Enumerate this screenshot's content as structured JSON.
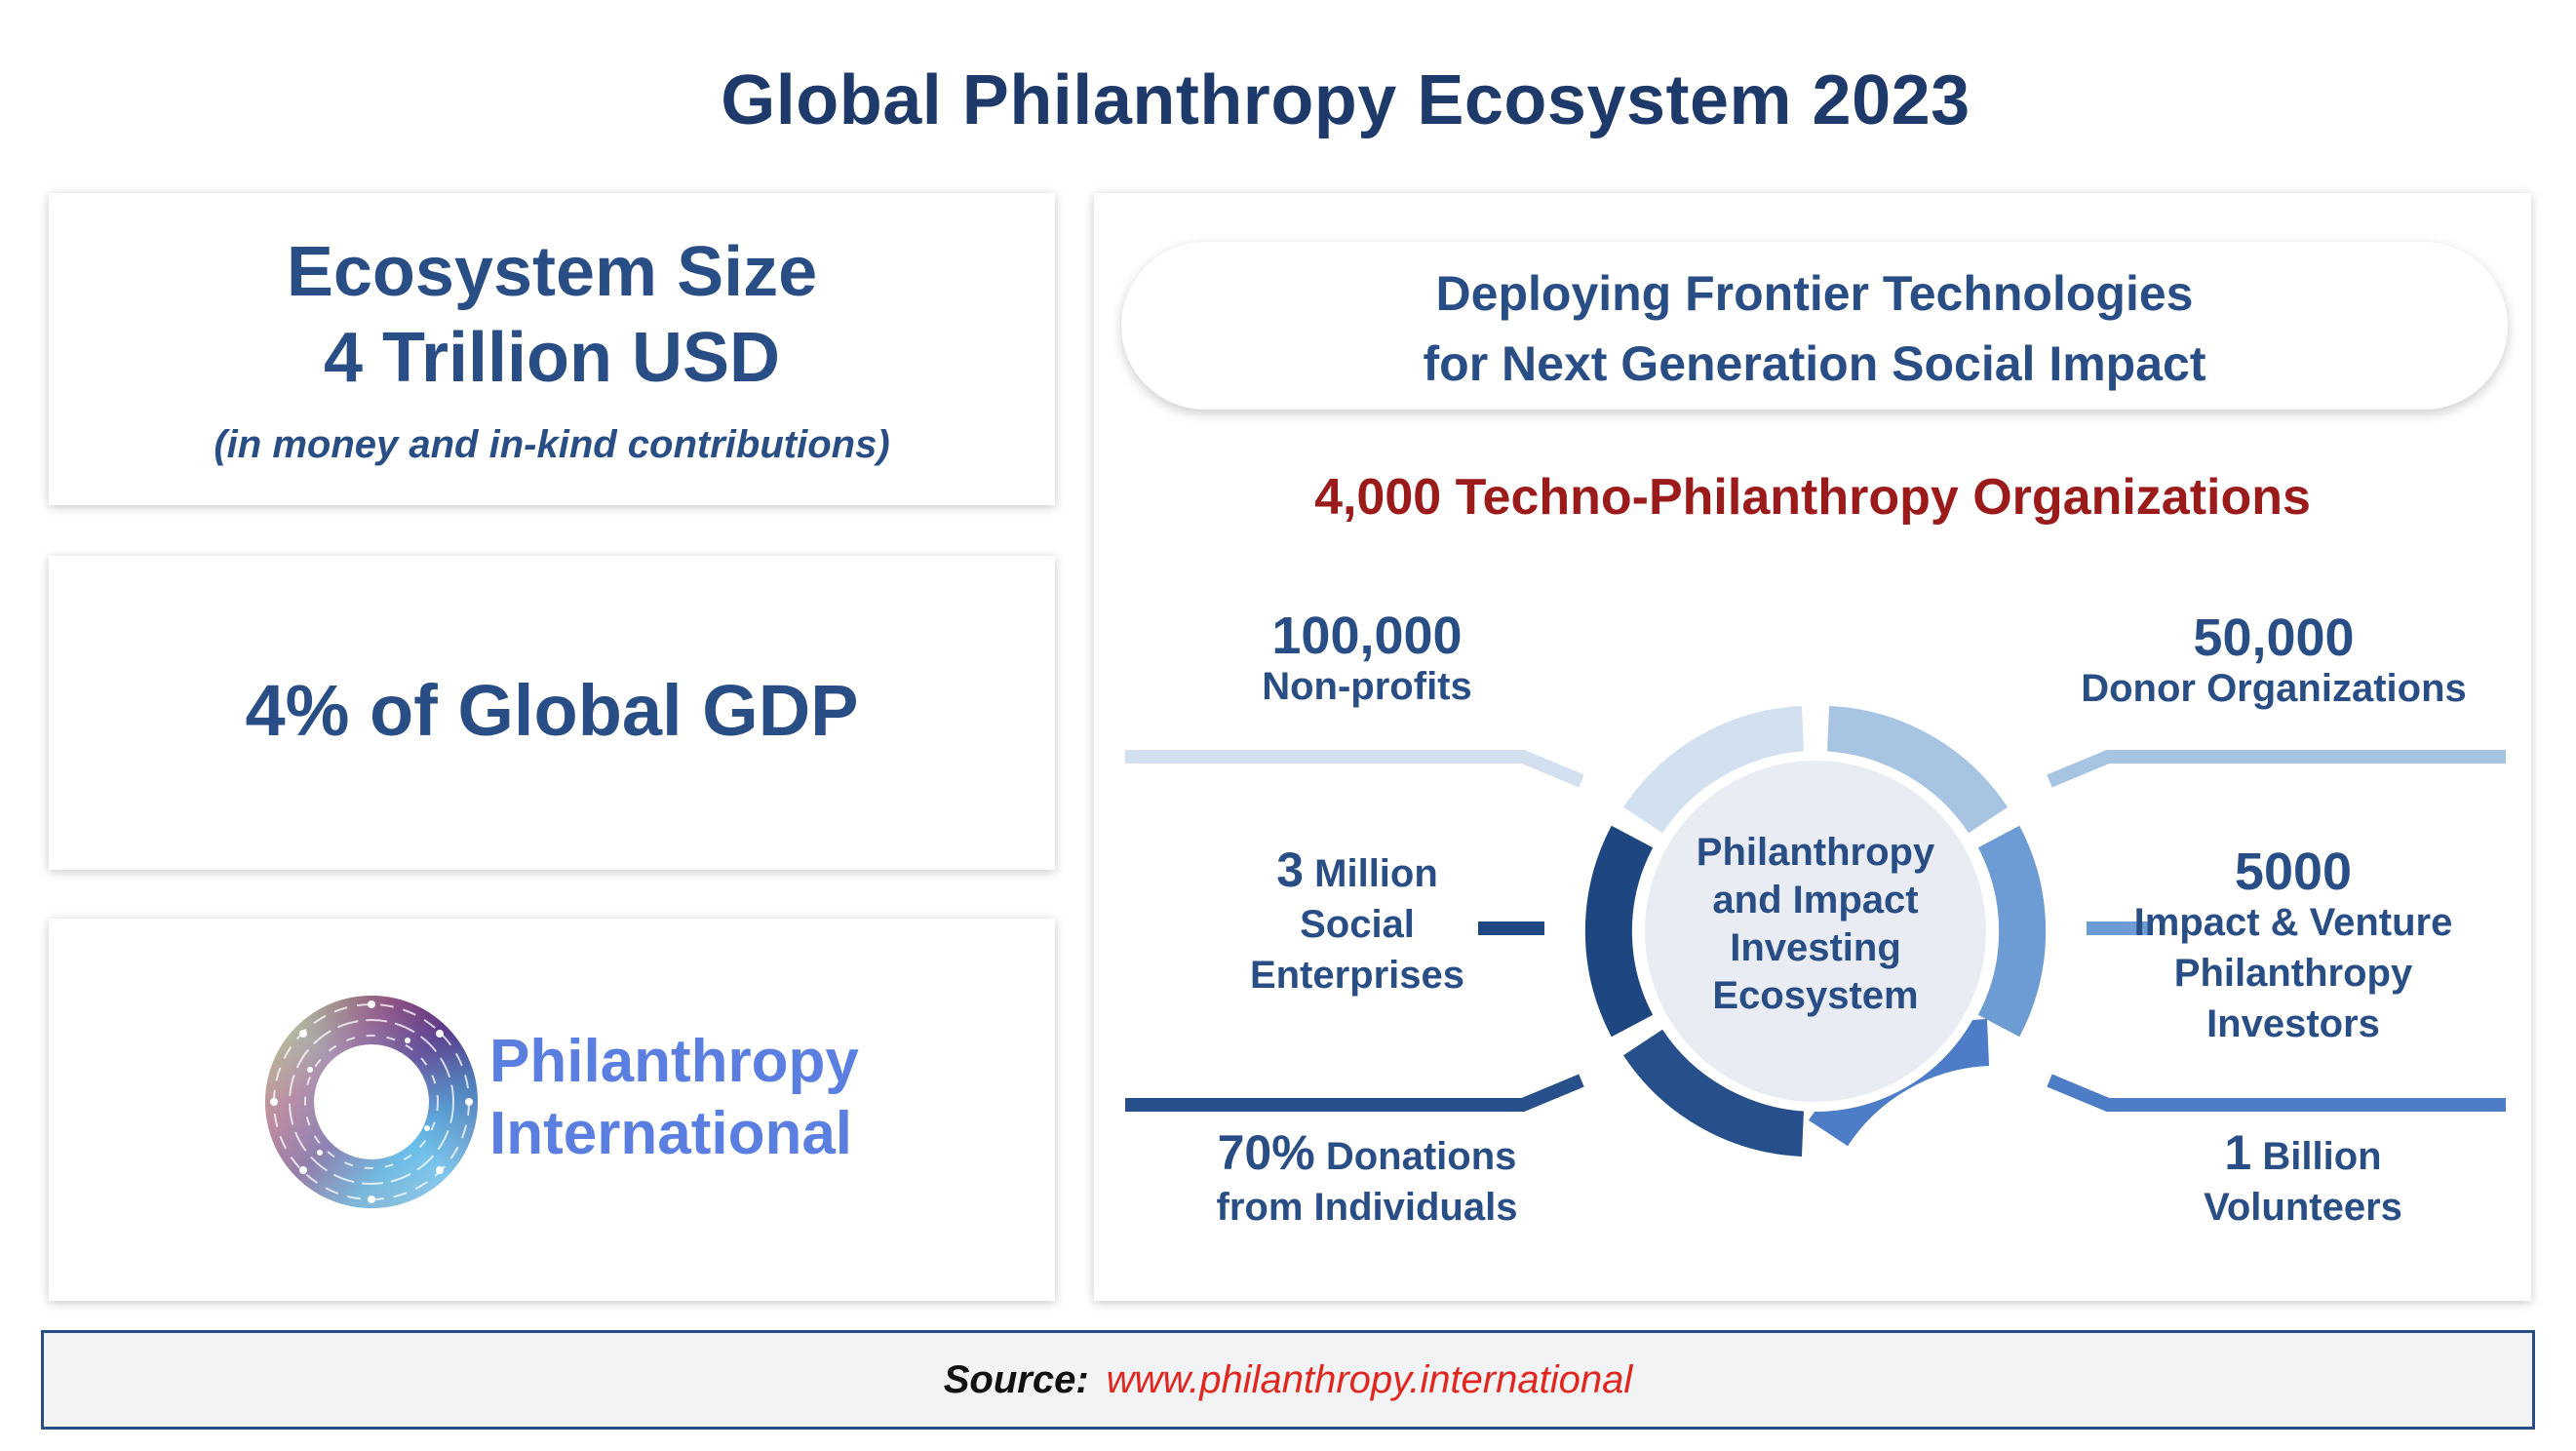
{
  "title": "Global Philanthropy Ecosystem 2023",
  "size_card": {
    "heading": "Ecosystem Size",
    "value": "4 Trillion USD",
    "note": "(in money and in-kind contributions)"
  },
  "gdp_card": {
    "text": "4% of Global GDP"
  },
  "logo_card": {
    "line1": "Philanthropy",
    "line2": "International",
    "icon": "circuit-ring-logo-icon"
  },
  "tech_card": {
    "pill_line1": "Deploying Frontier Technologies",
    "pill_line2": "for Next Generation Social Impact",
    "orgs": "4,000 Techno-Philanthropy Organizations"
  },
  "ecosystem": {
    "center": [
      "Philanthropy",
      "and Impact",
      "Investing",
      "Ecosystem"
    ],
    "nonprofits": {
      "number": "100,000",
      "label": "Non-profits"
    },
    "donor_orgs": {
      "number": "50,000",
      "label": "Donor Organizations"
    },
    "social_enterprises": {
      "number": "3",
      "unit": "Million",
      "label1": "Social",
      "label2": "Enterprises"
    },
    "impact_investors": {
      "number": "5000",
      "label1": "Impact & Venture",
      "label2": "Philanthropy",
      "label3": "Investors"
    },
    "donations": {
      "number": "70%",
      "unit": "Donations",
      "label2": "from Individuals"
    },
    "volunteers": {
      "number": "1",
      "unit": "Billion",
      "label2": "Volunteers"
    }
  },
  "colors": {
    "title": "#1d3a6b",
    "text": "#294e85",
    "orgs": "#9b1b1b",
    "seg_top_left": "#d2e0ef",
    "seg_top_right": "#a7c4e3",
    "seg_mid_left": "#1e4782",
    "seg_mid_right": "#6d9bd3",
    "seg_bottom_left": "#274f8c",
    "seg_bottom_right": "#4d7dc6"
  },
  "source": {
    "label": "Source:",
    "url": "www.philanthropy.international"
  }
}
